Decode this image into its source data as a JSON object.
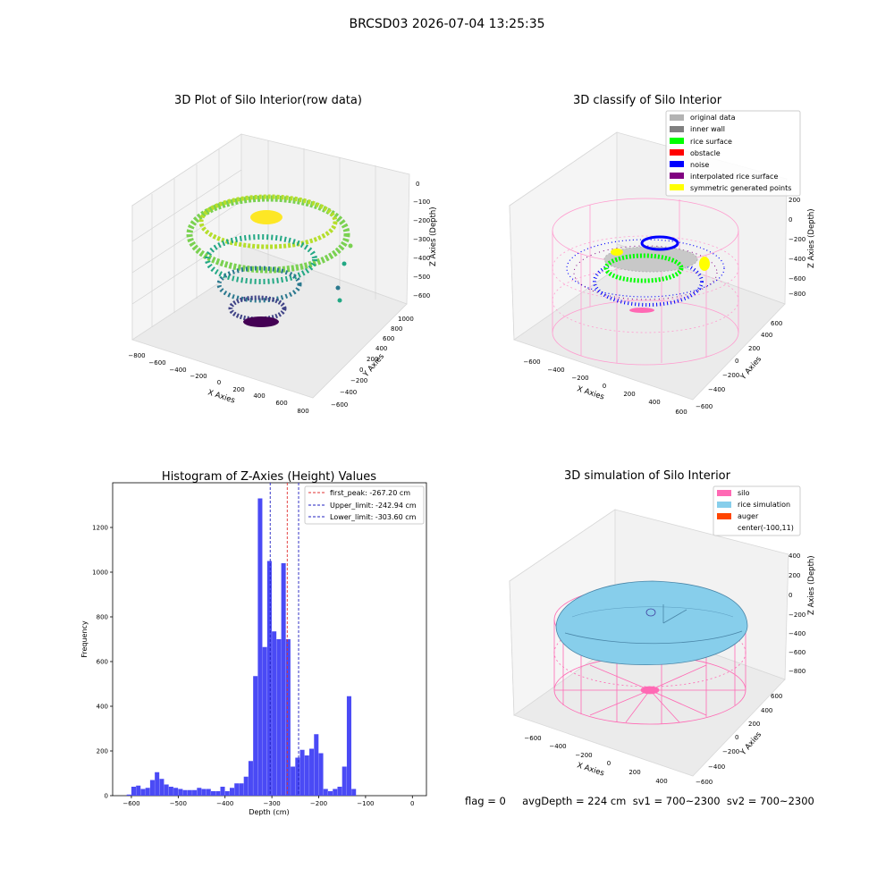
{
  "figure": {
    "suptitle": "BRCSD03 2026-07-04 13:25:35",
    "status_line": "flag = 0     avgDepth = 224 cm  sv1 = 700~2300  sv2 = 700~2300"
  },
  "colors": {
    "histogram_bar": "#4a4af5",
    "first_peak_line": "#e03030",
    "limit_line": "#2020c0",
    "silo": "#ff69b4",
    "rice_simulation": "#87ceeb",
    "auger": "#ff4500",
    "original_data": "#b3b3b3",
    "inner_wall": "#808080",
    "rice_surface": "#00ff00",
    "obstacle": "#ff0000",
    "noise": "#0000ff",
    "interpolated_rice_surface": "#800080",
    "symmetric_generated_points": "#ffff00"
  },
  "chart_data": [
    {
      "type": "scatter",
      "projection": "3d",
      "title": "3D Plot of Silo Interior(row data)",
      "xlabel": "X Axies",
      "ylabel": "Y Axies",
      "zlabel": "Z Axies (Depth)",
      "x_ticks": [
        "−800",
        "−600",
        "−400",
        "−200",
        "0",
        "200",
        "400",
        "600",
        "800"
      ],
      "y_ticks": [
        "−600",
        "−400",
        "−200",
        "0",
        "200",
        "400",
        "600",
        "800",
        "1000"
      ],
      "z_ticks": [
        "0",
        "−100",
        "−200",
        "−300",
        "−400",
        "−500",
        "−600"
      ],
      "colormap": "viridis",
      "grid": true
    },
    {
      "type": "scatter",
      "projection": "3d",
      "title": "3D classify of Silo Interior",
      "xlabel": "X Axies",
      "ylabel": "Y Axies",
      "zlabel": "Z Axies (Depth)",
      "x_ticks": [
        "−600",
        "−400",
        "−200",
        "0",
        "200",
        "400",
        "600"
      ],
      "y_ticks": [
        "−600",
        "−400",
        "−200",
        "0",
        "200",
        "400",
        "600"
      ],
      "z_ticks": [
        "200",
        "0",
        "−200",
        "−400",
        "−600",
        "−800"
      ],
      "legend_position": "top-right",
      "legend": [
        {
          "label": "original data",
          "color": "#b3b3b3"
        },
        {
          "label": "inner wall",
          "color": "#808080"
        },
        {
          "label": "rice surface",
          "color": "#00ff00"
        },
        {
          "label": "obstacle",
          "color": "#ff0000"
        },
        {
          "label": "noise",
          "color": "#0000ff"
        },
        {
          "label": "interpolated rice surface",
          "color": "#800080"
        },
        {
          "label": "symmetric generated points",
          "color": "#ffff00"
        }
      ],
      "grid": true
    },
    {
      "type": "bar",
      "title": "Histogram of Z-Axies (Height) Values",
      "xlabel": "Depth (cm)",
      "ylabel": "Frequency",
      "xlim": [
        -640,
        30
      ],
      "ylim": [
        0,
        1400
      ],
      "x_ticks": [
        -600,
        -500,
        -400,
        -300,
        -200,
        -100,
        0
      ],
      "y_ticks": [
        0,
        200,
        400,
        600,
        800,
        1000,
        1200
      ],
      "bin_width": 10,
      "bins": [
        {
          "x": -610,
          "y": 5
        },
        {
          "x": -600,
          "y": 40
        },
        {
          "x": -590,
          "y": 45
        },
        {
          "x": -580,
          "y": 30
        },
        {
          "x": -570,
          "y": 35
        },
        {
          "x": -560,
          "y": 70
        },
        {
          "x": -550,
          "y": 105
        },
        {
          "x": -540,
          "y": 75
        },
        {
          "x": -530,
          "y": 50
        },
        {
          "x": -520,
          "y": 40
        },
        {
          "x": -510,
          "y": 35
        },
        {
          "x": -500,
          "y": 30
        },
        {
          "x": -490,
          "y": 25
        },
        {
          "x": -480,
          "y": 25
        },
        {
          "x": -470,
          "y": 25
        },
        {
          "x": -460,
          "y": 35
        },
        {
          "x": -450,
          "y": 30
        },
        {
          "x": -440,
          "y": 30
        },
        {
          "x": -430,
          "y": 20
        },
        {
          "x": -420,
          "y": 20
        },
        {
          "x": -410,
          "y": 40
        },
        {
          "x": -400,
          "y": 20
        },
        {
          "x": -390,
          "y": 35
        },
        {
          "x": -380,
          "y": 55
        },
        {
          "x": -370,
          "y": 55
        },
        {
          "x": -360,
          "y": 85
        },
        {
          "x": -350,
          "y": 155
        },
        {
          "x": -340,
          "y": 535
        },
        {
          "x": -330,
          "y": 1330
        },
        {
          "x": -320,
          "y": 665
        },
        {
          "x": -310,
          "y": 1050
        },
        {
          "x": -300,
          "y": 735
        },
        {
          "x": -290,
          "y": 700
        },
        {
          "x": -280,
          "y": 1040
        },
        {
          "x": -270,
          "y": 700
        },
        {
          "x": -260,
          "y": 130
        },
        {
          "x": -250,
          "y": 170
        },
        {
          "x": -240,
          "y": 205
        },
        {
          "x": -230,
          "y": 180
        },
        {
          "x": -220,
          "y": 210
        },
        {
          "x": -210,
          "y": 275
        },
        {
          "x": -200,
          "y": 190
        },
        {
          "x": -190,
          "y": 30
        },
        {
          "x": -180,
          "y": 20
        },
        {
          "x": -170,
          "y": 30
        },
        {
          "x": -160,
          "y": 40
        },
        {
          "x": -150,
          "y": 130
        },
        {
          "x": -140,
          "y": 445
        },
        {
          "x": -130,
          "y": 30
        }
      ],
      "vlines": [
        {
          "x": -267.2,
          "label": "first_peak: -267.20 cm",
          "color": "#e03030"
        },
        {
          "x": -242.94,
          "label": "Upper_limit: -242.94 cm",
          "color": "#2020c0"
        },
        {
          "x": -303.6,
          "label": "Lower_limit: -303.60 cm",
          "color": "#2020c0"
        }
      ],
      "legend_position": "top-right"
    },
    {
      "type": "surface",
      "projection": "3d",
      "title": "3D simulation of Silo Interior",
      "xlabel": "X Axies",
      "ylabel": "Y Axies",
      "zlabel": "Z Axies (Depth)",
      "x_ticks": [
        "−600",
        "−400",
        "−200",
        "0",
        "200",
        "400"
      ],
      "y_ticks": [
        "−600",
        "−400",
        "−200",
        "0",
        "200",
        "400",
        "600"
      ],
      "z_ticks": [
        "400",
        "200",
        "0",
        "−200",
        "−400",
        "−600",
        "−800"
      ],
      "legend_position": "top-right",
      "legend": [
        {
          "label": "silo",
          "color": "#ff69b4"
        },
        {
          "label": "rice simulation",
          "color": "#87ceeb"
        },
        {
          "label": "auger",
          "color": "#ff4500"
        },
        {
          "label": "center(-100,11)",
          "color": ""
        }
      ],
      "grid": true
    }
  ]
}
